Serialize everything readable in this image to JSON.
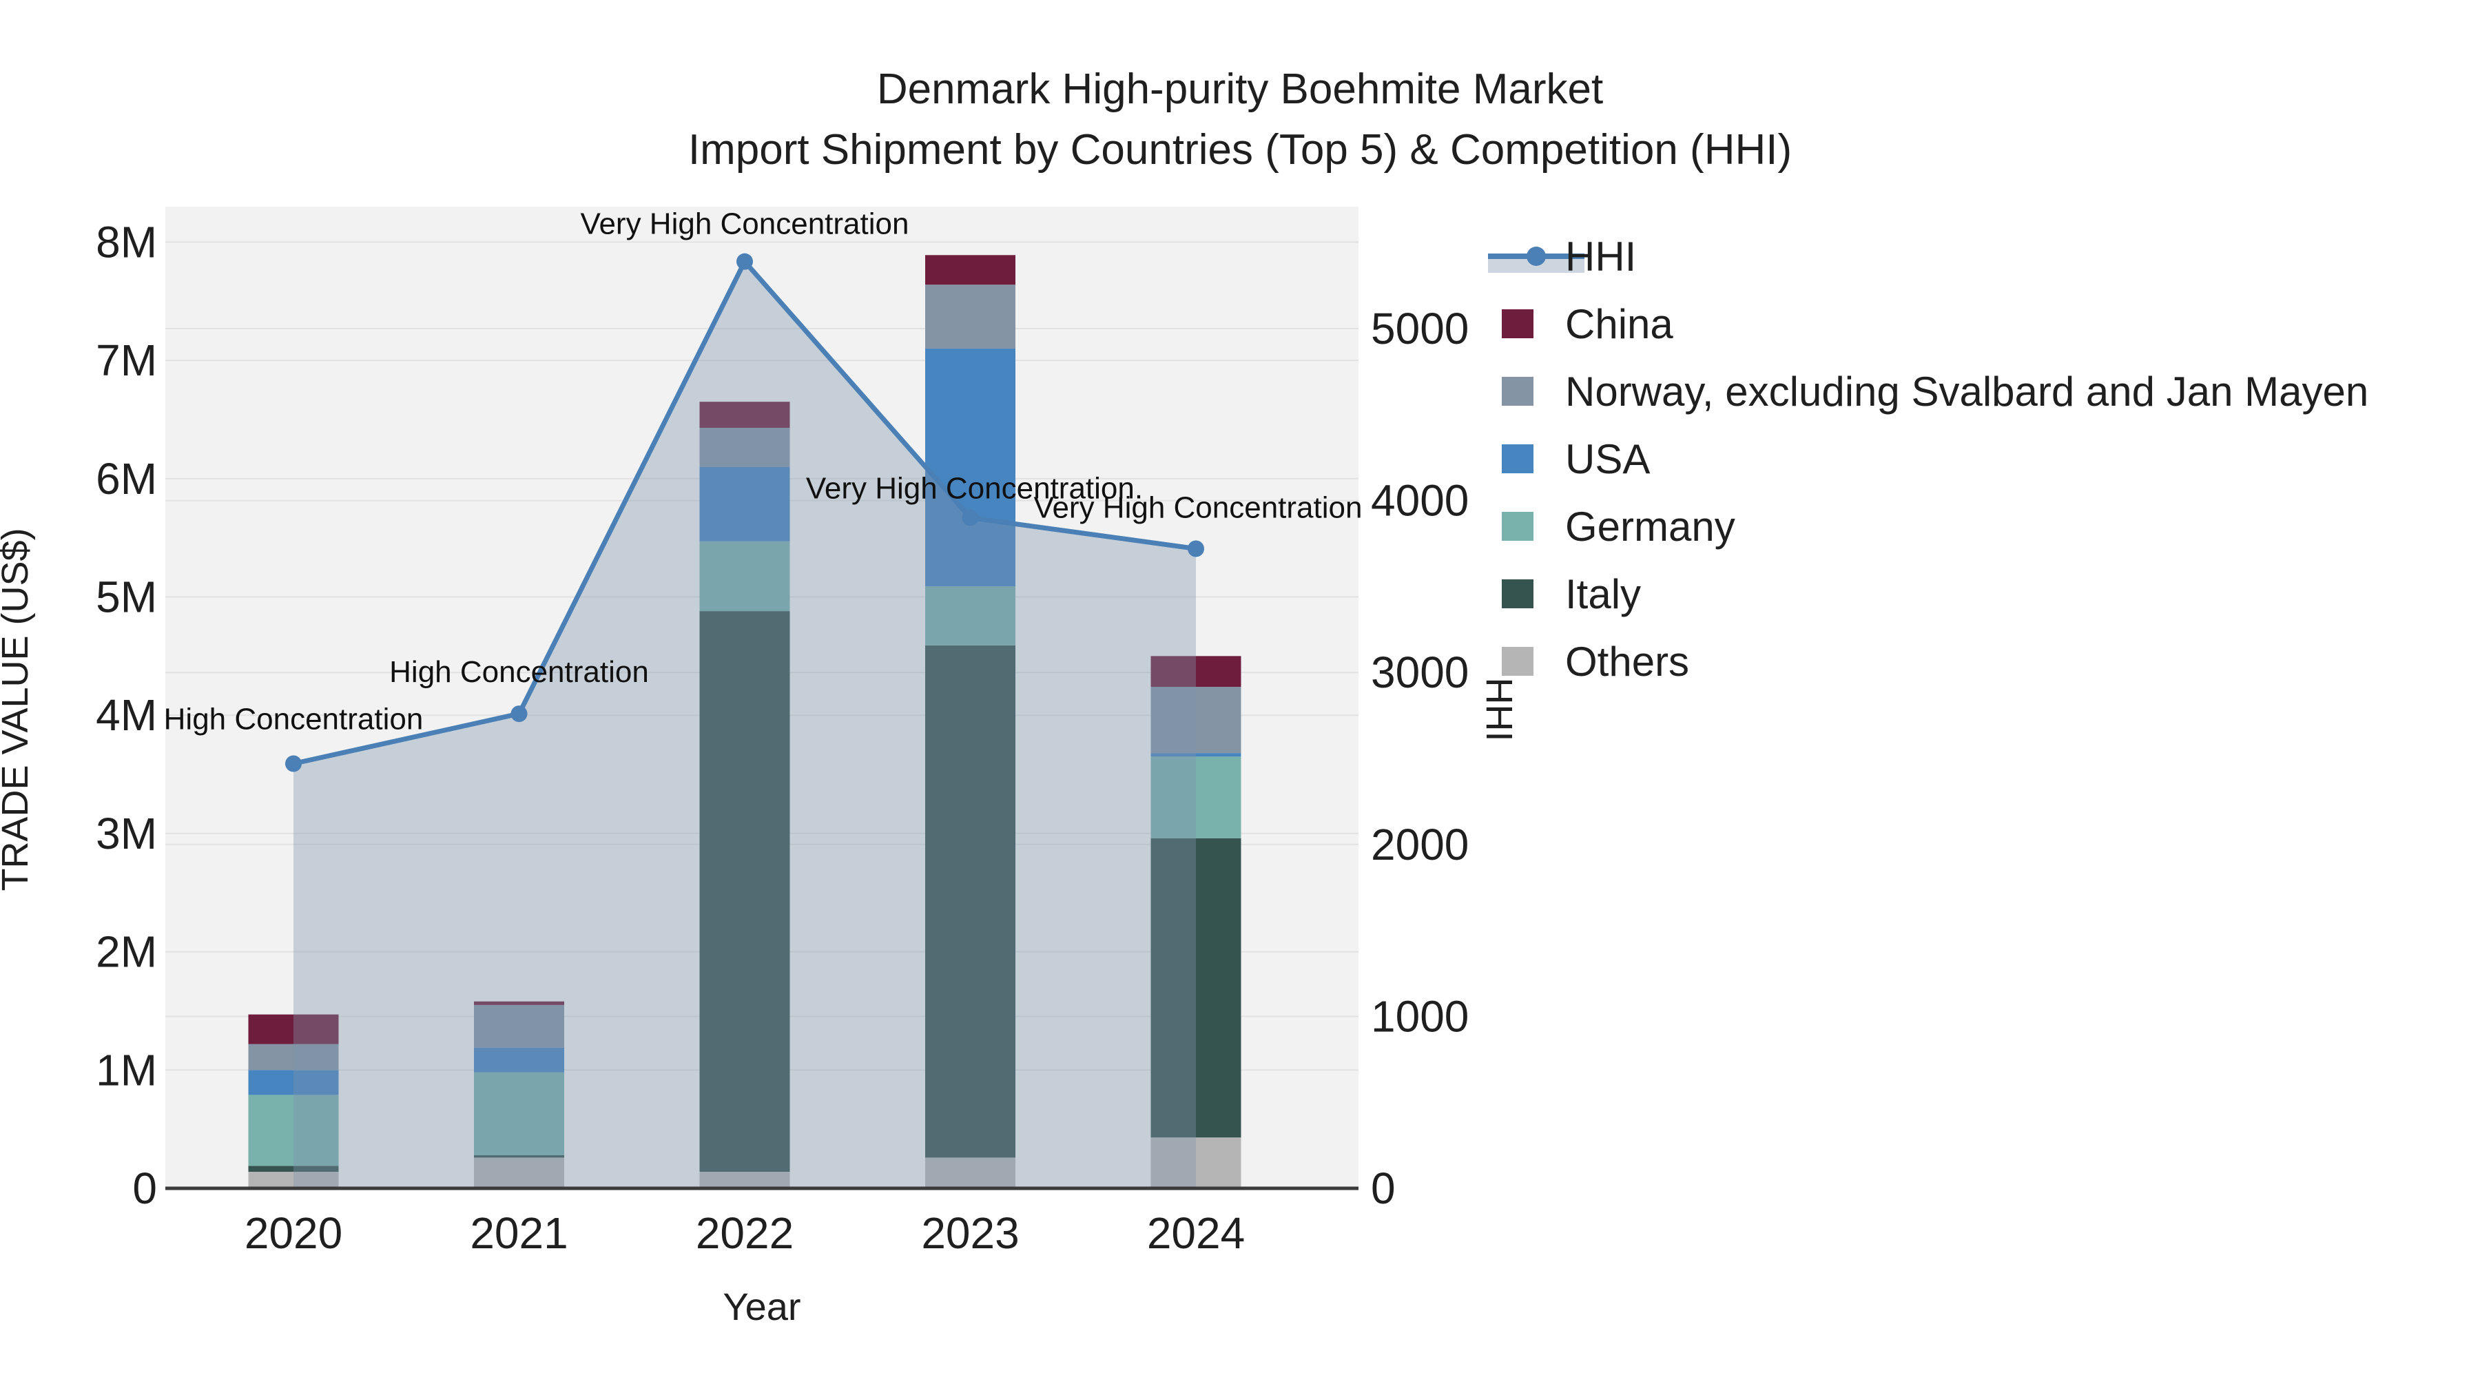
{
  "title": {
    "line1": "Denmark High-purity Boehmite Market",
    "line2": "Import Shipment by Countries (Top 5) & Competition (HHI)"
  },
  "axes": {
    "left_label": "TRADE VALUE (US$)",
    "right_label": "HHI",
    "x_label": "Year",
    "left_ticks": [
      "0",
      "1M",
      "2M",
      "3M",
      "4M",
      "5M",
      "6M",
      "7M",
      "8M"
    ],
    "right_ticks": [
      "0",
      "1000",
      "2000",
      "3000",
      "4000",
      "5000"
    ]
  },
  "legend": {
    "items": [
      {
        "label": "HHI",
        "type": "line",
        "color": "#4a80b5",
        "band": "#cdd5df"
      },
      {
        "label": "China",
        "type": "box",
        "color": "#6f1d3d"
      },
      {
        "label": "Norway, excluding Svalbard and Jan Mayen",
        "type": "box",
        "color": "#8494a5"
      },
      {
        "label": "USA",
        "type": "box",
        "color": "#4785c1"
      },
      {
        "label": "Germany",
        "type": "box",
        "color": "#79b1ad"
      },
      {
        "label": "Italy",
        "type": "box",
        "color": "#355450"
      },
      {
        "label": "Others",
        "type": "box",
        "color": "#b5b5b5"
      }
    ]
  },
  "chart_data": {
    "type": "bar",
    "subtype": "stacked-bars-with-line",
    "categories": [
      "2020",
      "2021",
      "2022",
      "2023",
      "2024"
    ],
    "value_units": "trade value in millions of US$ (left axis), HHI index (right axis)",
    "stack_order_bottom_to_top": [
      "Others",
      "Italy",
      "Germany",
      "USA",
      "Norway",
      "China"
    ],
    "series": [
      {
        "name": "China",
        "color": "#6f1d3d",
        "values": [
          0.25,
          0.03,
          0.22,
          0.25,
          0.26
        ]
      },
      {
        "name": "Norway, excluding Svalbard and Jan Mayen",
        "color": "#8494a5",
        "values": [
          0.22,
          0.36,
          0.33,
          0.54,
          0.56
        ]
      },
      {
        "name": "USA",
        "color": "#4785c1",
        "values": [
          0.21,
          0.21,
          0.63,
          2.01,
          0.03
        ]
      },
      {
        "name": "Germany",
        "color": "#79b1ad",
        "values": [
          0.6,
          0.7,
          0.59,
          0.5,
          0.69
        ]
      },
      {
        "name": "Italy",
        "color": "#355450",
        "values": [
          0.05,
          0.02,
          4.74,
          4.33,
          2.53
        ]
      },
      {
        "name": "Others",
        "color": "#b5b5b5",
        "values": [
          0.14,
          0.26,
          0.14,
          0.26,
          0.43
        ]
      }
    ],
    "totals": [
      1.47,
      1.58,
      6.65,
      7.89,
      4.5
    ],
    "hhi": {
      "name": "HHI",
      "values": [
        2470,
        2760,
        5390,
        3900,
        3720
      ],
      "line_color": "#4a80b5",
      "area_fill": "rgba(126,147,170,0.38)"
    },
    "annotations": [
      {
        "year": "2020",
        "text": "High Concentration"
      },
      {
        "year": "2021",
        "text": "High Concentration"
      },
      {
        "year": "2022",
        "text": "Very High Concentration"
      },
      {
        "year": "2023",
        "text": "Very High Concentration."
      },
      {
        "year": "2024",
        "text": "Very High Concentration"
      }
    ],
    "title": "Denmark High-purity Boehmite Market — Import Shipment by Countries (Top 5) & Competition (HHI)",
    "xlabel": "Year",
    "ylabel_left": "TRADE VALUE (US$)",
    "ylabel_right": "HHI",
    "ylim_left_millions": [
      0,
      8.3
    ],
    "ylim_right": [
      0,
      5700
    ],
    "grid": true,
    "legend_position": "right",
    "plot_bg": "#f2f2f2",
    "grid_color": "#e2e2e2"
  }
}
